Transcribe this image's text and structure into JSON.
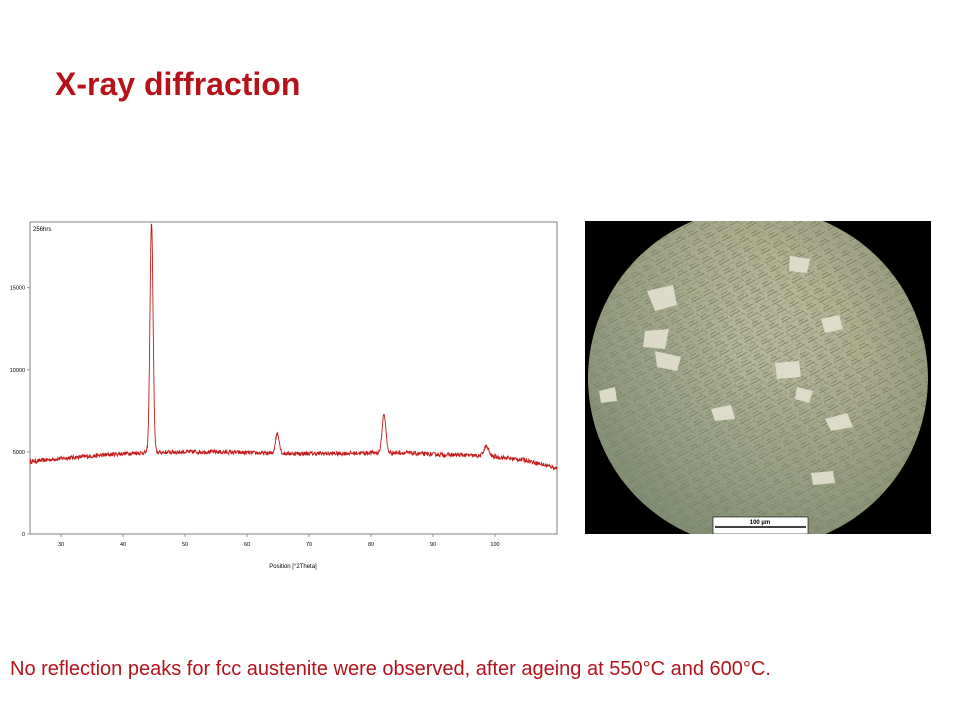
{
  "slide": {
    "title": "X-ray diffraction",
    "caption": "No reflection peaks for fcc austenite were observed, after ageing at 550°C and 600°C."
  },
  "colors": {
    "title": "#b5121b",
    "caption": "#b5121b",
    "trace": "#c41a1a"
  },
  "micrograph": {
    "scale_bar_label": "100 µm"
  },
  "chart_data": {
    "type": "line",
    "annotation": "256hrs",
    "xlabel": "Position [°2Theta]",
    "ylabel": "",
    "xlim": [
      25,
      110
    ],
    "ylim": [
      0,
      19000
    ],
    "xticks": [
      30,
      40,
      50,
      60,
      70,
      80,
      90,
      100
    ],
    "yticks": [
      0,
      5000,
      10000,
      15000
    ],
    "grid": false,
    "baseline": [
      [
        25,
        4400
      ],
      [
        30,
        4600
      ],
      [
        35,
        4750
      ],
      [
        40,
        4900
      ],
      [
        43,
        4950
      ],
      [
        50,
        5000
      ],
      [
        55,
        5000
      ],
      [
        60,
        4950
      ],
      [
        65,
        4900
      ],
      [
        70,
        4900
      ],
      [
        75,
        4900
      ],
      [
        80,
        4950
      ],
      [
        85,
        4950
      ],
      [
        90,
        4850
      ],
      [
        95,
        4800
      ],
      [
        100,
        4700
      ],
      [
        105,
        4500
      ],
      [
        110,
        4000
      ]
    ],
    "peaks": [
      {
        "x": 44.6,
        "height": 19000,
        "width": 0.25
      },
      {
        "x": 64.9,
        "height": 1250,
        "width": 0.3
      },
      {
        "x": 82.1,
        "height": 2350,
        "width": 0.3
      },
      {
        "x": 98.6,
        "height": 600,
        "width": 0.4
      }
    ],
    "series": [
      {
        "values_note_free": true
      }
    ]
  }
}
